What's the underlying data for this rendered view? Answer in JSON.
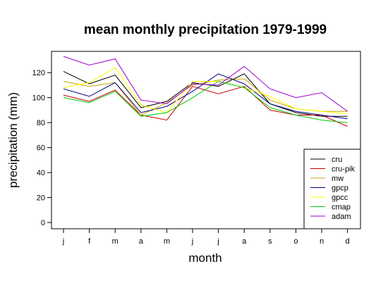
{
  "chart_data": {
    "type": "line",
    "title": "mean monthly precipitation 1979-1999",
    "xlabel": "month",
    "ylabel": "precipitation (mm)",
    "categories": [
      "j",
      "f",
      "m",
      "a",
      "m",
      "j",
      "j",
      "a",
      "s",
      "o",
      "n",
      "d"
    ],
    "yticks": [
      0,
      20,
      40,
      60,
      80,
      100,
      120
    ],
    "ylim": [
      -5,
      137
    ],
    "grid": false,
    "legend_position": "bottom-right",
    "series": [
      {
        "name": "cru",
        "color": "#000000",
        "values": [
          121,
          111,
          118,
          92,
          97,
          112,
          109,
          119,
          95,
          88,
          85,
          85
        ]
      },
      {
        "name": "cru-pik",
        "color": "#cc0000",
        "values": [
          102,
          97,
          106,
          86,
          82,
          109,
          103,
          109,
          90,
          86,
          86,
          77
        ]
      },
      {
        "name": "mw",
        "color": "#c8a000",
        "values": [
          113,
          109,
          112,
          86,
          96,
          110,
          114,
          115,
          98,
          91,
          89,
          89
        ]
      },
      {
        "name": "gpcp",
        "color": "#000080",
        "values": [
          107,
          101,
          112,
          88,
          93,
          105,
          119,
          111,
          95,
          89,
          86,
          83
        ]
      },
      {
        "name": "gpcc",
        "color": "#ffff00",
        "values": [
          108,
          112,
          124,
          94,
          88,
          113,
          113,
          108,
          101,
          91,
          89,
          87
        ]
      },
      {
        "name": "cmap",
        "color": "#00cc00",
        "values": [
          100,
          96,
          105,
          85,
          88,
          100,
          113,
          108,
          92,
          86,
          82,
          80
        ]
      },
      {
        "name": "adam",
        "color": "#9900cc",
        "values": [
          133,
          126,
          131,
          98,
          95,
          111,
          110,
          125,
          107,
          100,
          104,
          89
        ]
      }
    ]
  }
}
